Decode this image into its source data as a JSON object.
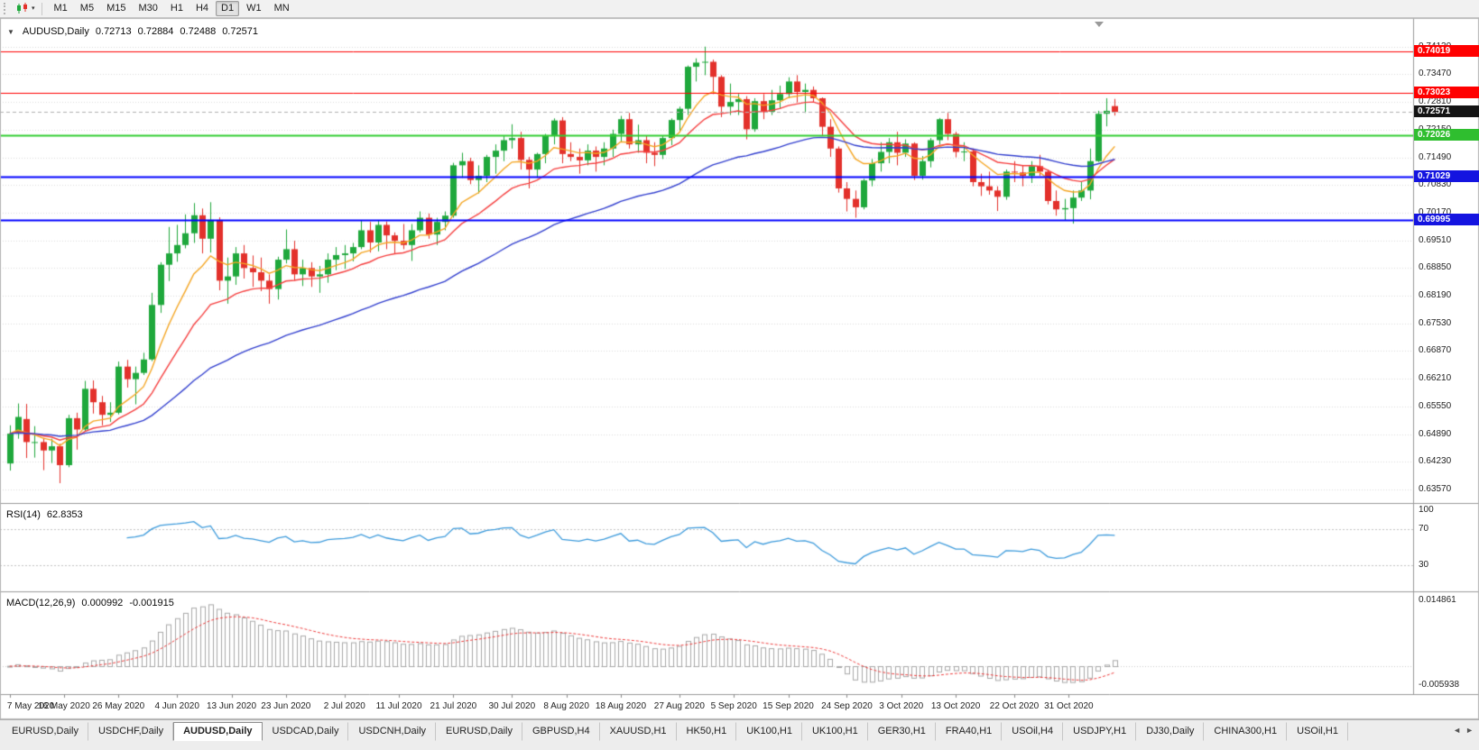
{
  "toolbar": {
    "dropdown_glyph": "▾",
    "timeframes": [
      "M1",
      "M5",
      "M15",
      "M30",
      "H1",
      "H4",
      "D1",
      "W1",
      "MN"
    ],
    "active_timeframe": "D1"
  },
  "chart": {
    "collapse_glyph": "▼",
    "header": {
      "title": "AUDUSD,Daily",
      "open": "0.72713",
      "high": "0.72884",
      "low": "0.72488",
      "close": "0.72571"
    },
    "horizontal_lines": [
      {
        "price": 0.74019,
        "label": "0.74019",
        "color": "#ff0000",
        "tag_bg": "#ff0000",
        "width": 1,
        "style": "solid"
      },
      {
        "price": 0.73023,
        "label": "0.73023",
        "color": "#ff0000",
        "tag_bg": "#ff0000",
        "width": 1,
        "style": "solid"
      },
      {
        "price": 0.72571,
        "label": "0.72571",
        "color": "#b0b0b0",
        "tag_bg": "#141414",
        "width": 1,
        "style": "current"
      },
      {
        "price": 0.72026,
        "label": "0.72026",
        "color": "#32cd32",
        "tag_bg": "#2fbe2f",
        "width": 2,
        "style": "solid"
      },
      {
        "price": 0.71029,
        "label": "0.71029",
        "color": "#0000ff",
        "tag_bg": "#1414e0",
        "width": 2,
        "style": "solid"
      },
      {
        "price": 0.69995,
        "label": "0.69995",
        "color": "#0000ff",
        "tag_bg": "#1414e0",
        "width": 2,
        "style": "solid"
      }
    ]
  },
  "indicators": {
    "rsi": {
      "title": "RSI(14)",
      "value_label": "62.8353",
      "period": 14,
      "color": "#3d9bdc",
      "levels": [
        {
          "value": 100,
          "label": "100"
        },
        {
          "value": 70,
          "label": "70"
        },
        {
          "value": 30,
          "label": "30"
        }
      ]
    },
    "macd": {
      "title": "MACD(12,26,9)",
      "value_label": "0.000992",
      "signal_value_label": "-0.001915",
      "fast": 12,
      "slow": 26,
      "signal": 9,
      "hist_color": "#a9a9a9",
      "signal_color": "#f03e3e",
      "scale_max_label": "0.014861",
      "scale_min_label": "-0.005938"
    }
  },
  "tabs": {
    "items": [
      "EURUSD,Daily",
      "USDCHF,Daily",
      "AUDUSD,Daily",
      "USDCAD,Daily",
      "USDCNH,Daily",
      "EURUSD,Daily",
      "GBPUSD,H4",
      "XAUUSD,H1",
      "HK50,H1",
      "UK100,H1",
      "UK100,H1",
      "GER30,H1",
      "FRA40,H1",
      "USOil,H4",
      "USDJPY,H1",
      "DJ30,Daily",
      "CHINA300,H1",
      "USOil,H1"
    ],
    "active_index": 2,
    "scroll_left_glyph": "◄",
    "scroll_right_glyph": "►"
  },
  "colors": {
    "up": "#1fa83c",
    "down": "#e3312b",
    "grid": "#dadada",
    "separator": "#9a9a9a",
    "axis_border": "#9a9a9a",
    "pane_bg": "#ffffff",
    "shift_marker": "#9a9a9a"
  },
  "chart_data": {
    "type": "candlestick",
    "symbol": "AUDUSD",
    "timeframe": "Daily",
    "y_axis": {
      "top": 0.7477,
      "bottom": 0.6329,
      "labels": [
        "0.74130",
        "0.73470",
        "0.72810",
        "0.72150",
        "0.71490",
        "0.70830",
        "0.70170",
        "0.69510",
        "0.68850",
        "0.68190",
        "0.67530",
        "0.66870",
        "0.66210",
        "0.65550",
        "0.64890",
        "0.64230",
        "0.63570"
      ]
    },
    "x_axis": {
      "labels": [
        {
          "text": "7 May 2020",
          "i": 0
        },
        {
          "text": "16 May 2020",
          "i": 6.5
        },
        {
          "text": "26 May 2020",
          "i": 13
        },
        {
          "text": "4 Jun 2020",
          "i": 20
        },
        {
          "text": "13 Jun 2020",
          "i": 26.5
        },
        {
          "text": "23 Jun 2020",
          "i": 33
        },
        {
          "text": "2 Jul 2020",
          "i": 40
        },
        {
          "text": "11 Jul 2020",
          "i": 46.5
        },
        {
          "text": "21 Jul 2020",
          "i": 53
        },
        {
          "text": "30 Jul 2020",
          "i": 60
        },
        {
          "text": "8 Aug 2020",
          "i": 66.5
        },
        {
          "text": "18 Aug 2020",
          "i": 73
        },
        {
          "text": "27 Aug 2020",
          "i": 80
        },
        {
          "text": "5 Sep 2020",
          "i": 86.5
        },
        {
          "text": "15 Sep 2020",
          "i": 93
        },
        {
          "text": "24 Sep 2020",
          "i": 100
        },
        {
          "text": "3 Oct 2020",
          "i": 106.5
        },
        {
          "text": "13 Oct 2020",
          "i": 113
        },
        {
          "text": "22 Oct 2020",
          "i": 120
        },
        {
          "text": "31 Oct 2020",
          "i": 126.5
        }
      ]
    },
    "moving_averages": [
      {
        "name": "ma-fast",
        "period": 8,
        "color": "#f5a623"
      },
      {
        "name": "ma-medium",
        "period": 17,
        "color": "#f64040"
      },
      {
        "name": "ma-slow",
        "period": 45,
        "color": "#3340cf"
      }
    ],
    "candles": [
      [
        0.6419,
        0.651,
        0.6402,
        0.649
      ],
      [
        0.649,
        0.6562,
        0.6478,
        0.653
      ],
      [
        0.6525,
        0.6561,
        0.6432,
        0.647
      ],
      [
        0.647,
        0.6508,
        0.6433,
        0.647
      ],
      [
        0.647,
        0.648,
        0.6403,
        0.645
      ],
      [
        0.645,
        0.6478,
        0.642,
        0.646
      ],
      [
        0.646,
        0.6466,
        0.6372,
        0.6415
      ],
      [
        0.6415,
        0.6535,
        0.641,
        0.6527
      ],
      [
        0.6527,
        0.654,
        0.6452,
        0.65
      ],
      [
        0.65,
        0.6616,
        0.6495,
        0.6597
      ],
      [
        0.6597,
        0.6617,
        0.6538,
        0.6565
      ],
      [
        0.6565,
        0.658,
        0.651,
        0.6535
      ],
      [
        0.6535,
        0.6565,
        0.6518,
        0.654
      ],
      [
        0.654,
        0.6662,
        0.6536,
        0.665
      ],
      [
        0.665,
        0.6666,
        0.66,
        0.662
      ],
      [
        0.662,
        0.665,
        0.656,
        0.6635
      ],
      [
        0.6635,
        0.6683,
        0.663,
        0.6667
      ],
      [
        0.6667,
        0.6826,
        0.6663,
        0.6797
      ],
      [
        0.6797,
        0.6899,
        0.6778,
        0.6893
      ],
      [
        0.6893,
        0.6983,
        0.6854,
        0.692
      ],
      [
        0.692,
        0.6988,
        0.69,
        0.694
      ],
      [
        0.694,
        0.7013,
        0.6932,
        0.6968
      ],
      [
        0.6968,
        0.704,
        0.6945,
        0.7011
      ],
      [
        0.7011,
        0.7027,
        0.692,
        0.6955
      ],
      [
        0.6955,
        0.7042,
        0.6922,
        0.7
      ],
      [
        0.7,
        0.7006,
        0.6832,
        0.6855
      ],
      [
        0.6855,
        0.691,
        0.68,
        0.6865
      ],
      [
        0.6865,
        0.6935,
        0.6845,
        0.692
      ],
      [
        0.692,
        0.694,
        0.686,
        0.6885
      ],
      [
        0.6885,
        0.6915,
        0.684,
        0.6875
      ],
      [
        0.6875,
        0.691,
        0.683,
        0.6855
      ],
      [
        0.6855,
        0.687,
        0.68,
        0.6835
      ],
      [
        0.6835,
        0.6912,
        0.681,
        0.6905
      ],
      [
        0.6905,
        0.6977,
        0.6896,
        0.693
      ],
      [
        0.693,
        0.695,
        0.6855,
        0.687
      ],
      [
        0.687,
        0.6905,
        0.6842,
        0.6885
      ],
      [
        0.6885,
        0.6899,
        0.684,
        0.6865
      ],
      [
        0.6865,
        0.689,
        0.6826,
        0.687
      ],
      [
        0.687,
        0.692,
        0.685,
        0.6905
      ],
      [
        0.6905,
        0.6935,
        0.688,
        0.6916
      ],
      [
        0.6916,
        0.694,
        0.6883,
        0.692
      ],
      [
        0.692,
        0.6945,
        0.6901,
        0.6935
      ],
      [
        0.6935,
        0.6998,
        0.693,
        0.6975
      ],
      [
        0.6975,
        0.6995,
        0.6922,
        0.6946
      ],
      [
        0.6946,
        0.6999,
        0.6925,
        0.6988
      ],
      [
        0.6988,
        0.6996,
        0.693,
        0.6963
      ],
      [
        0.6963,
        0.697,
        0.692,
        0.695
      ],
      [
        0.695,
        0.699,
        0.693,
        0.694
      ],
      [
        0.694,
        0.699,
        0.6902,
        0.6975
      ],
      [
        0.6975,
        0.702,
        0.697,
        0.7005
      ],
      [
        0.7005,
        0.7015,
        0.6955,
        0.6965
      ],
      [
        0.6965,
        0.7005,
        0.694,
        0.6995
      ],
      [
        0.6995,
        0.702,
        0.6975,
        0.701
      ],
      [
        0.701,
        0.7136,
        0.7005,
        0.713
      ],
      [
        0.713,
        0.716,
        0.71,
        0.714
      ],
      [
        0.714,
        0.7148,
        0.7085,
        0.7095
      ],
      [
        0.7095,
        0.713,
        0.7063,
        0.7105
      ],
      [
        0.7105,
        0.7155,
        0.709,
        0.715
      ],
      [
        0.715,
        0.718,
        0.711,
        0.7165
      ],
      [
        0.7165,
        0.72,
        0.714,
        0.719
      ],
      [
        0.719,
        0.7228,
        0.717,
        0.7195
      ],
      [
        0.7195,
        0.721,
        0.712,
        0.7143
      ],
      [
        0.7143,
        0.715,
        0.7075,
        0.712
      ],
      [
        0.712,
        0.716,
        0.71,
        0.7157
      ],
      [
        0.7157,
        0.7205,
        0.7135,
        0.7202
      ],
      [
        0.7202,
        0.7242,
        0.718,
        0.7237
      ],
      [
        0.7237,
        0.7245,
        0.7135,
        0.7157
      ],
      [
        0.7157,
        0.7185,
        0.714,
        0.715
      ],
      [
        0.715,
        0.717,
        0.711,
        0.7142
      ],
      [
        0.7142,
        0.718,
        0.713,
        0.7165
      ],
      [
        0.7165,
        0.7175,
        0.7115,
        0.715
      ],
      [
        0.715,
        0.7185,
        0.713,
        0.717
      ],
      [
        0.717,
        0.7215,
        0.715,
        0.7205
      ],
      [
        0.7205,
        0.7248,
        0.7185,
        0.724
      ],
      [
        0.724,
        0.7255,
        0.717,
        0.718
      ],
      [
        0.718,
        0.7227,
        0.716,
        0.719
      ],
      [
        0.719,
        0.72,
        0.7135,
        0.716
      ],
      [
        0.716,
        0.7185,
        0.7128,
        0.7155
      ],
      [
        0.7155,
        0.72,
        0.7145,
        0.7195
      ],
      [
        0.7195,
        0.7242,
        0.7178,
        0.7238
      ],
      [
        0.7238,
        0.727,
        0.721,
        0.7265
      ],
      [
        0.7265,
        0.7368,
        0.725,
        0.7365
      ],
      [
        0.7365,
        0.7385,
        0.733,
        0.7375
      ],
      [
        0.7375,
        0.7413,
        0.7345,
        0.7377
      ],
      [
        0.7377,
        0.7382,
        0.73,
        0.7341
      ],
      [
        0.7341,
        0.7345,
        0.7245,
        0.727
      ],
      [
        0.727,
        0.7325,
        0.725,
        0.7281
      ],
      [
        0.7281,
        0.73,
        0.725,
        0.7288
      ],
      [
        0.7288,
        0.7295,
        0.7192,
        0.7216
      ],
      [
        0.7216,
        0.729,
        0.721,
        0.7283
      ],
      [
        0.7283,
        0.73,
        0.724,
        0.7258
      ],
      [
        0.7258,
        0.731,
        0.725,
        0.7285
      ],
      [
        0.7285,
        0.732,
        0.7265,
        0.73
      ],
      [
        0.73,
        0.734,
        0.729,
        0.733
      ],
      [
        0.733,
        0.7345,
        0.728,
        0.7305
      ],
      [
        0.7305,
        0.7325,
        0.7255,
        0.731
      ],
      [
        0.731,
        0.7318,
        0.728,
        0.729
      ],
      [
        0.729,
        0.7292,
        0.72,
        0.7222
      ],
      [
        0.7222,
        0.724,
        0.715,
        0.717
      ],
      [
        0.717,
        0.7175,
        0.7065,
        0.7075
      ],
      [
        0.7075,
        0.709,
        0.702,
        0.705
      ],
      [
        0.705,
        0.707,
        0.7005,
        0.703
      ],
      [
        0.703,
        0.7098,
        0.7025,
        0.7094
      ],
      [
        0.7094,
        0.7145,
        0.708,
        0.7135
      ],
      [
        0.7135,
        0.7185,
        0.7115,
        0.7162
      ],
      [
        0.7162,
        0.7195,
        0.7135,
        0.7185
      ],
      [
        0.7185,
        0.721,
        0.713,
        0.716
      ],
      [
        0.716,
        0.7192,
        0.715,
        0.7182
      ],
      [
        0.7182,
        0.7185,
        0.7095,
        0.7105
      ],
      [
        0.7105,
        0.7152,
        0.7096,
        0.714
      ],
      [
        0.714,
        0.7195,
        0.7125,
        0.719
      ],
      [
        0.719,
        0.7243,
        0.718,
        0.724
      ],
      [
        0.724,
        0.7255,
        0.719,
        0.7205
      ],
      [
        0.7205,
        0.721,
        0.7149,
        0.7162
      ],
      [
        0.7162,
        0.7185,
        0.714,
        0.7163
      ],
      [
        0.7163,
        0.717,
        0.708,
        0.709
      ],
      [
        0.709,
        0.711,
        0.7057,
        0.708
      ],
      [
        0.708,
        0.7115,
        0.706,
        0.707
      ],
      [
        0.707,
        0.708,
        0.7021,
        0.7055
      ],
      [
        0.7055,
        0.712,
        0.7048,
        0.7115
      ],
      [
        0.7115,
        0.714,
        0.709,
        0.7113
      ],
      [
        0.7113,
        0.713,
        0.708,
        0.7105
      ],
      [
        0.7105,
        0.714,
        0.7088,
        0.7128
      ],
      [
        0.7128,
        0.7155,
        0.7105,
        0.7115
      ],
      [
        0.7115,
        0.712,
        0.7037,
        0.7045
      ],
      [
        0.7045,
        0.707,
        0.701,
        0.7025
      ],
      [
        0.7025,
        0.705,
        0.6998,
        0.7028
      ],
      [
        0.7028,
        0.707,
        0.6991,
        0.7053
      ],
      [
        0.7053,
        0.709,
        0.7045,
        0.707
      ],
      [
        0.707,
        0.717,
        0.7049,
        0.714
      ],
      [
        0.714,
        0.726,
        0.7138,
        0.7253
      ],
      [
        0.7253,
        0.729,
        0.7223,
        0.726
      ],
      [
        0.72713,
        0.72884,
        0.72488,
        0.72571
      ]
    ]
  }
}
